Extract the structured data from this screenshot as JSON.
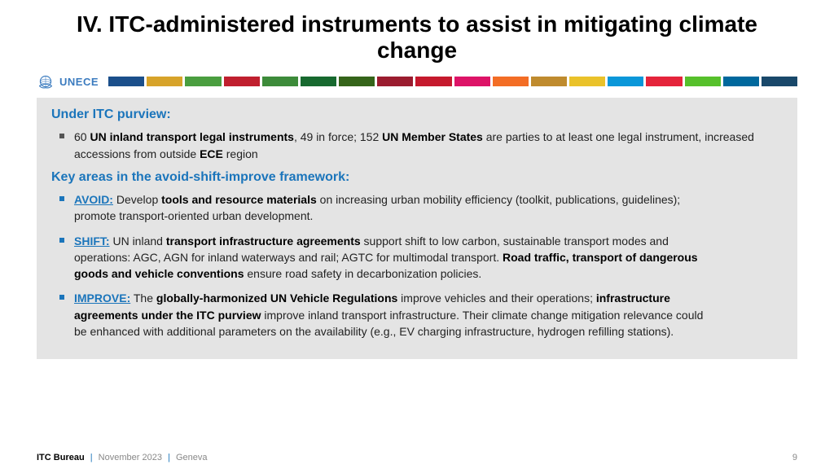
{
  "title": {
    "text": "IV. ITC-administered instruments to assist in mitigating climate change",
    "fontsize": 28
  },
  "logo": {
    "label": "UNECE",
    "fontsize": 13,
    "emblem_color": "#3b7bbf"
  },
  "color_bar": {
    "colors": [
      "#1b4f8b",
      "#d7a32a",
      "#4a9e3f",
      "#c01f2e",
      "#3d8b3a",
      "#17692f",
      "#35641a",
      "#9b1c2f",
      "#c5192d",
      "#dd1367",
      "#f36d25",
      "#bf8b2e",
      "#eac22a",
      "#0a97d9",
      "#e5243b",
      "#56c02b",
      "#00689d",
      "#19486a"
    ],
    "height": 12
  },
  "section1": {
    "heading": "Under ITC purview:",
    "heading_fontsize": 16,
    "bullet_html": "60 <b>UN inland transport legal instruments</b>, 49 in force; 152 <b>UN Member States</b> are parties to at least one legal instrument, increased accessions from outside <b>ECE</b> region",
    "bullet_fontsize": 14
  },
  "section2": {
    "heading": "Key areas in the avoid-shift-improve framework:",
    "heading_fontsize": 16,
    "bullets_fontsize": 14,
    "bullets": [
      {
        "label": "AVOID:",
        "html": " Develop <b>tools and resource materials</b> on increasing urban mobility efficiency (toolkit, publications, guidelines); promote transport-oriented urban development."
      },
      {
        "label": "SHIFT:",
        "html": " UN inland <b>transport infrastructure agreements</b> support shift to low carbon, sustainable transport modes and operations:  AGC, AGN for inland waterways and rail; AGTC for multimodal transport. <b>Road traffic, transport of dangerous goods and vehicle conventions</b> ensure road safety in decarbonization policies."
      },
      {
        "label": "IMPROVE:",
        "html": " The <b>globally-harmonized UN Vehicle Regulations</b> improve vehicles and their operations; <b>infrastructure agreements under the ITC purview</b> improve inland transport infrastructure. Their climate change mitigation relevance could be enhanced with additional parameters on the availability (e.g., EV charging infrastructure, hydrogen refilling stations)."
      }
    ]
  },
  "footer": {
    "org": "ITC Bureau",
    "date": "November 2023",
    "place": "Geneva",
    "page": "9",
    "fontsize": 11
  },
  "content_bg": "#e4e4e4",
  "content_max_width_bullets": 800
}
